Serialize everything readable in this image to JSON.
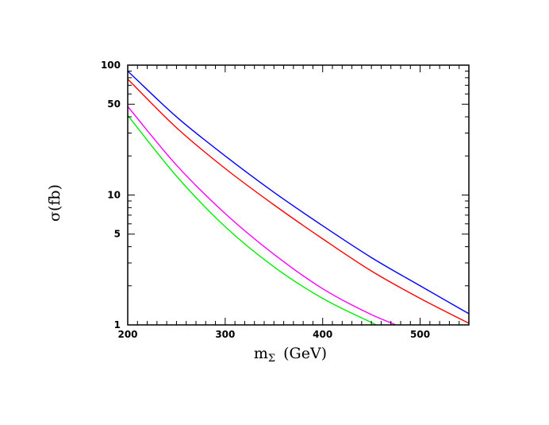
{
  "chart_data": {
    "type": "line",
    "title": "",
    "xlabel": "m",
    "xlabel_sub": "Σ",
    "xlabel_unit": "(GeV)",
    "ylabel": "σ(fb)",
    "xlim": [
      200,
      550
    ],
    "ylim": [
      1,
      100
    ],
    "yscale": "log",
    "grid": false,
    "x_ticks": [
      200,
      300,
      400,
      500
    ],
    "y_ticks": [
      1,
      5,
      10,
      50,
      100
    ],
    "series": [
      {
        "color": "#0000ff",
        "x": [
          200,
          250,
          300,
          350,
          400,
          450,
          500,
          550
        ],
        "y": [
          90,
          40,
          20,
          10.5,
          5.8,
          3.3,
          2.0,
          1.22
        ]
      },
      {
        "color": "#ff0000",
        "x": [
          200,
          250,
          300,
          350,
          400,
          450,
          500,
          550
        ],
        "y": [
          78,
          33,
          16,
          8.4,
          4.6,
          2.6,
          1.6,
          1.03
        ]
      },
      {
        "color": "#ff00ff",
        "x": [
          200,
          250,
          300,
          350,
          400,
          450,
          475
        ],
        "y": [
          48,
          17,
          7.2,
          3.5,
          1.9,
          1.2,
          1.0
        ]
      },
      {
        "color": "#00ee00",
        "x": [
          200,
          250,
          300,
          350,
          400,
          455
        ],
        "y": [
          41,
          14,
          5.7,
          2.8,
          1.6,
          1.0
        ]
      }
    ]
  }
}
